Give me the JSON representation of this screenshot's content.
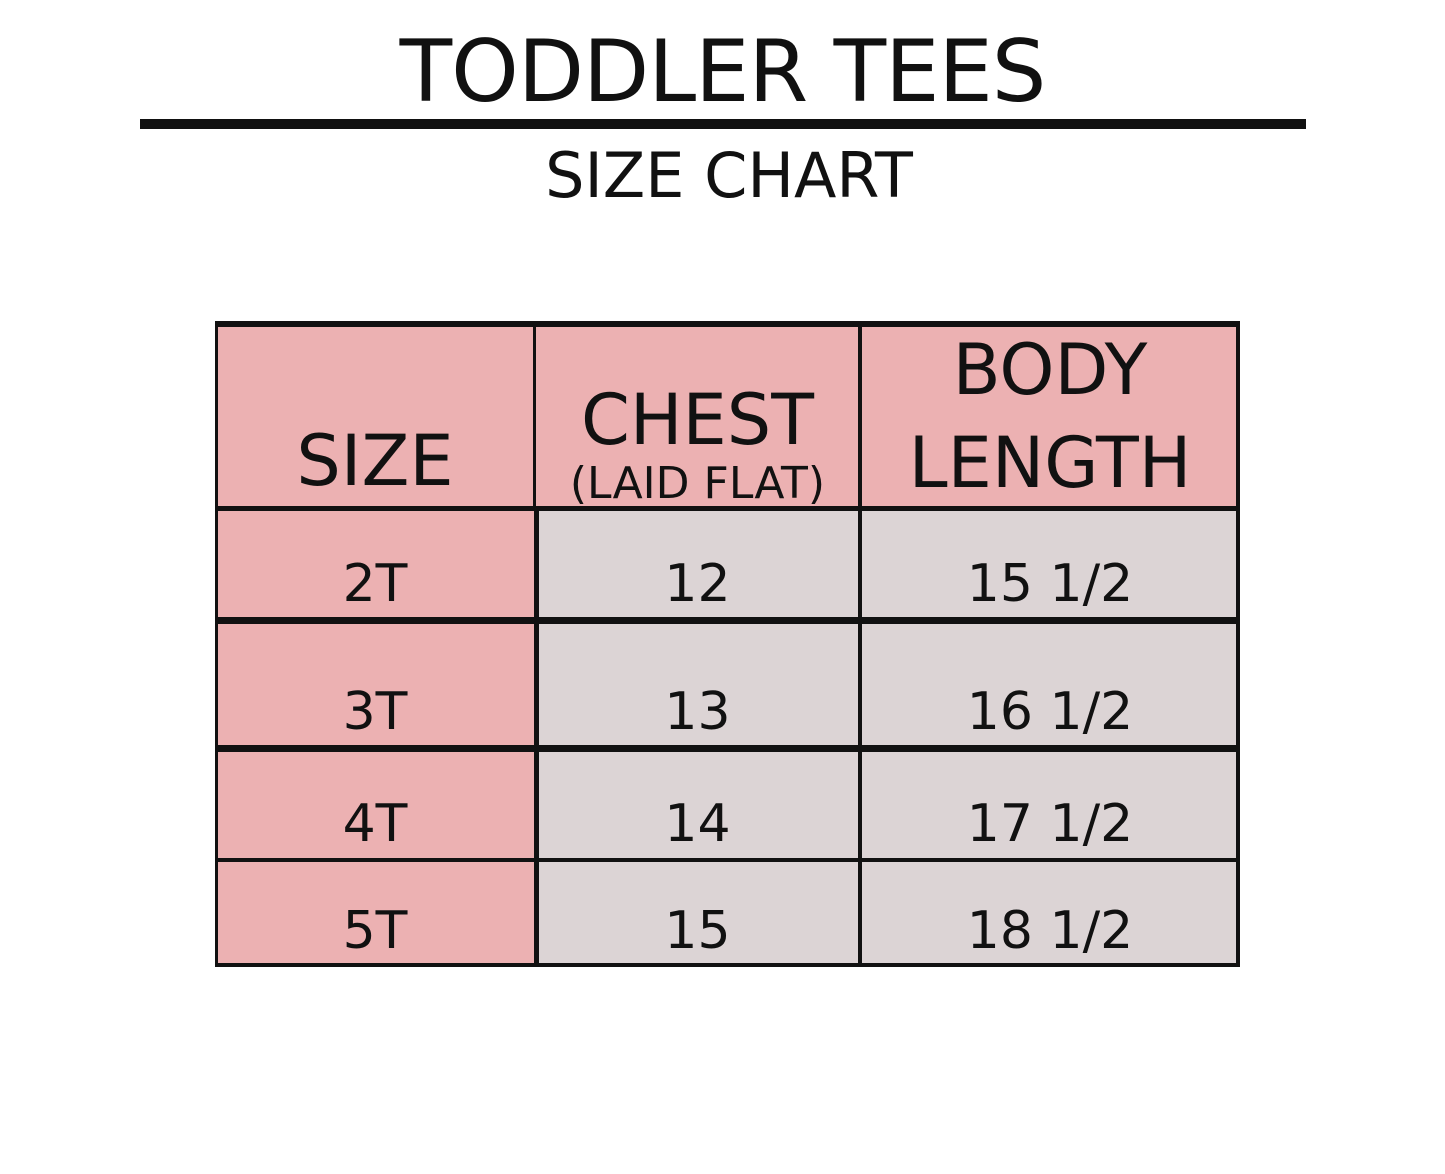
{
  "title": "TODDLER TEES",
  "subtitle": "SIZE CHART",
  "colors": {
    "header": "#ecb1b2",
    "size_column": "#ecb1b2",
    "values": "#dcd4d5",
    "borders": "#111111"
  },
  "table": {
    "headers": {
      "size": "SIZE",
      "chest": "CHEST",
      "chest_note": "(LAID FLAT)",
      "body_length_line1": "BODY",
      "body_length_line2": "LENGTH"
    },
    "rows": [
      {
        "size": "2T",
        "chest": "12",
        "body_length": "15 1/2"
      },
      {
        "size": "3T",
        "chest": "13",
        "body_length": "16 1/2"
      },
      {
        "size": "4T",
        "chest": "14",
        "body_length": "17 1/2"
      },
      {
        "size": "5T",
        "chest": "15",
        "body_length": "18 1/2"
      }
    ]
  }
}
